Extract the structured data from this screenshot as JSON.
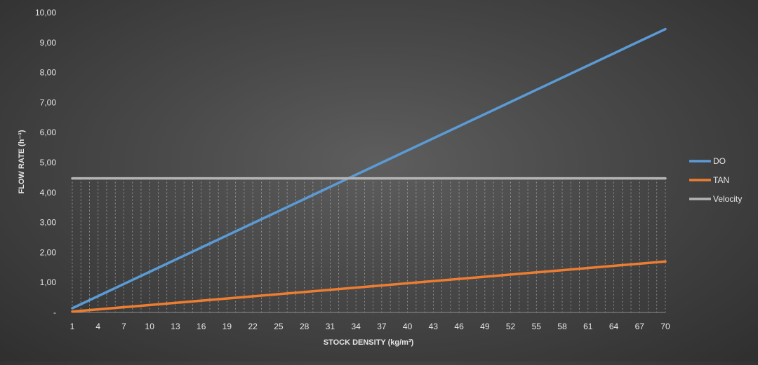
{
  "chart_data": {
    "type": "line",
    "title": "",
    "xlabel": "STOCK DENSITY  (kg/m³)",
    "ylabel": "FLOW RATE  (h⁻¹)",
    "x_range": [
      1,
      70
    ],
    "x_ticks": [
      "1",
      "4",
      "7",
      "10",
      "13",
      "16",
      "19",
      "22",
      "25",
      "28",
      "31",
      "34",
      "37",
      "40",
      "43",
      "46",
      "49",
      "52",
      "55",
      "58",
      "61",
      "64",
      "67",
      "70"
    ],
    "ylim": [
      0,
      10
    ],
    "y_ticks": [
      "-",
      "1,00",
      "2,00",
      "3,00",
      "4,00",
      "5,00",
      "6,00",
      "7,00",
      "8,00",
      "9,00",
      "10,00"
    ],
    "grid": "vertical dashed",
    "legend_position": "right",
    "series": [
      {
        "name": "DO",
        "color": "#5b9bd5",
        "points": [
          [
            1,
            0.14
          ],
          [
            70,
            9.45
          ]
        ]
      },
      {
        "name": "TAN",
        "color": "#ed7d31",
        "points": [
          [
            1,
            0.03
          ],
          [
            70,
            1.7
          ]
        ]
      },
      {
        "name": "Velocity",
        "color": "#b4b4b4",
        "points": [
          [
            1,
            4.47
          ],
          [
            70,
            4.47
          ]
        ]
      }
    ]
  }
}
